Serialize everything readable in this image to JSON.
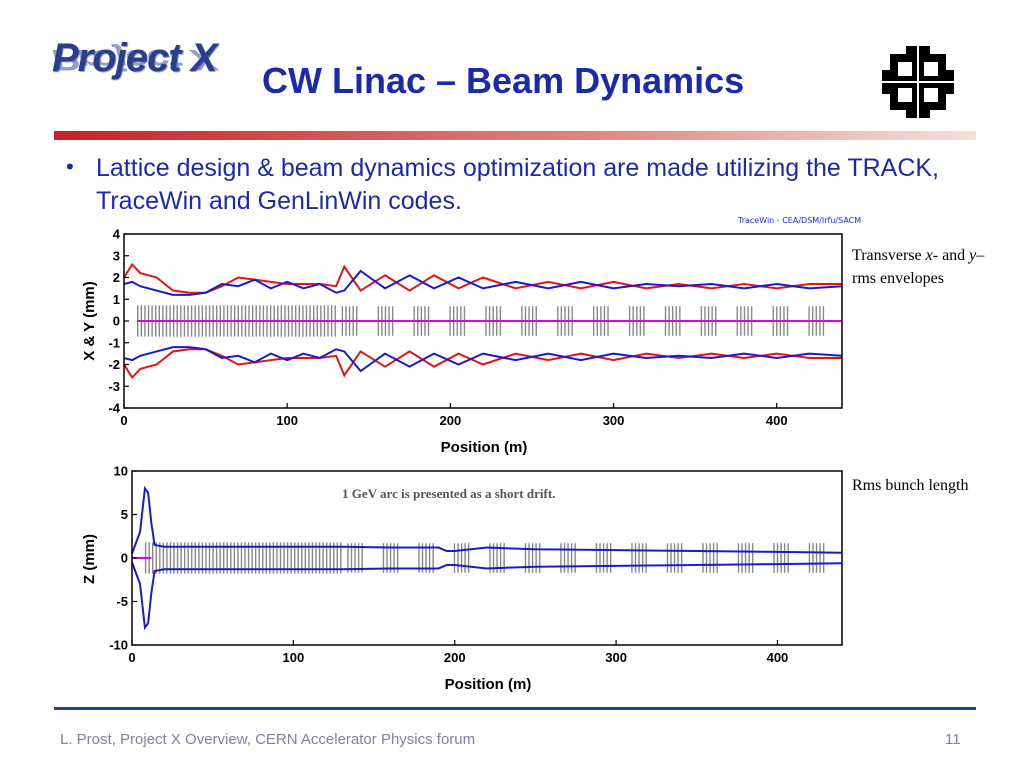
{
  "slide": {
    "logo_text": "Project X",
    "title": "CW Linac – Beam Dynamics",
    "bullet": "Lattice design & beam dynamics optimization are made utilizing the TRACK, TraceWin and GenLinWin codes.",
    "credit": "TraceWin - CEA/DSM/Irfu/SACM",
    "label_transverse_prefix": "Transverse ",
    "label_transverse_x": "x",
    "label_transverse_mid": "- and ",
    "label_transverse_y": "y",
    "label_transverse_suffix": "– rms envelopes",
    "label_bunch": "Rms bunch length",
    "annotation": "1 GeV arc is presented as a short drift.",
    "footer": "L. Prost, Project X Overview, CERN  Accelerator Physics forum",
    "page_number": "11",
    "colors": {
      "title": "#1a2aa8",
      "logo": "#2b3d8f",
      "rule_red": "#c8202a",
      "series_red": "#e51414",
      "series_blue": "#1a1acd",
      "series_magenta": "#e000e0",
      "lattice": "#888888"
    }
  },
  "chart_data": [
    {
      "type": "line",
      "xlabel": "Position (m)",
      "ylabel": "X & Y (mm)",
      "xlim": [
        0,
        440
      ],
      "ylim": [
        -4,
        4
      ],
      "xticks": [
        "0",
        "100",
        "200",
        "300",
        "400"
      ],
      "yticks": [
        "4",
        "3",
        "2",
        "1",
        "0",
        "-1",
        "-2",
        "-3",
        "-4"
      ],
      "series": [
        {
          "color": "red",
          "x": [
            0,
            5,
            10,
            20,
            30,
            40,
            50,
            60,
            70,
            80,
            90,
            100,
            110,
            120,
            130,
            135,
            145,
            160,
            175,
            190,
            205,
            220,
            240,
            260,
            280,
            300,
            320,
            340,
            360,
            380,
            400,
            420,
            440
          ],
          "values": [
            2.0,
            2.6,
            2.2,
            2.0,
            1.4,
            1.3,
            1.3,
            1.6,
            2.0,
            1.9,
            1.8,
            1.7,
            1.7,
            1.7,
            1.6,
            2.5,
            1.4,
            2.1,
            1.4,
            2.1,
            1.5,
            2.0,
            1.5,
            1.8,
            1.5,
            1.8,
            1.5,
            1.7,
            1.5,
            1.7,
            1.5,
            1.7,
            1.7
          ]
        },
        {
          "color": "blue",
          "x": [
            0,
            5,
            10,
            20,
            30,
            40,
            50,
            60,
            70,
            80,
            90,
            100,
            110,
            120,
            130,
            135,
            145,
            160,
            175,
            190,
            205,
            220,
            240,
            260,
            280,
            300,
            320,
            340,
            360,
            380,
            400,
            420,
            440
          ],
          "values": [
            1.7,
            1.8,
            1.6,
            1.4,
            1.2,
            1.2,
            1.3,
            1.7,
            1.6,
            1.9,
            1.5,
            1.8,
            1.5,
            1.7,
            1.3,
            1.4,
            2.3,
            1.5,
            2.1,
            1.5,
            2.0,
            1.5,
            1.8,
            1.5,
            1.8,
            1.5,
            1.7,
            1.6,
            1.7,
            1.5,
            1.7,
            1.5,
            1.6
          ]
        },
        {
          "color": "magenta",
          "x": [
            8,
            440
          ],
          "values": [
            0,
            0
          ]
        }
      ]
    },
    {
      "type": "line",
      "xlabel": "Position (m)",
      "ylabel": "Z (mm)",
      "xlim": [
        0,
        440
      ],
      "ylim": [
        -10,
        10
      ],
      "xticks": [
        "0",
        "100",
        "200",
        "300",
        "400"
      ],
      "yticks": [
        "10",
        "5",
        "0",
        "-5",
        "-10"
      ],
      "series": [
        {
          "color": "blue",
          "x": [
            0,
            5,
            8,
            10,
            12,
            14,
            20,
            40,
            70,
            100,
            130,
            160,
            190,
            195,
            200,
            220,
            250,
            300,
            350,
            400,
            440
          ],
          "values": [
            0.5,
            3,
            8,
            7.5,
            4,
            1.5,
            1.3,
            1.3,
            1.3,
            1.3,
            1.3,
            1.2,
            1.2,
            0.8,
            0.8,
            1.2,
            1.0,
            0.9,
            0.8,
            0.7,
            0.6
          ]
        },
        {
          "color": "magenta",
          "x": [
            0,
            12
          ],
          "values": [
            0,
            0
          ]
        }
      ]
    }
  ]
}
